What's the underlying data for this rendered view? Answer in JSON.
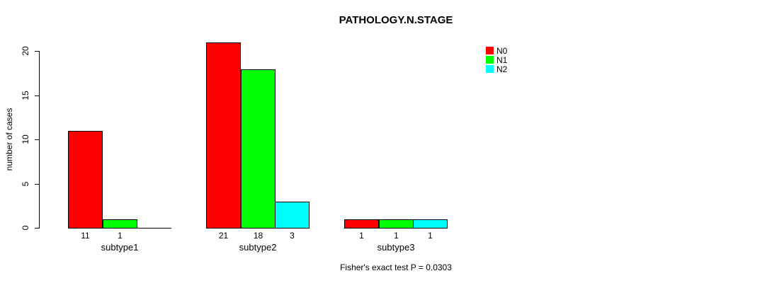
{
  "chart_data": {
    "type": "bar",
    "title": "PATHOLOGY.N.STAGE",
    "ylabel": "number of cases",
    "xlabel": "",
    "categories": [
      "subtype1",
      "subtype2",
      "subtype3"
    ],
    "series": [
      {
        "name": "N0",
        "color": "#FF0000",
        "values": [
          11,
          21,
          1
        ]
      },
      {
        "name": "N1",
        "color": "#00FF00",
        "values": [
          1,
          18,
          1
        ]
      },
      {
        "name": "N2",
        "color": "#00FFFF",
        "values": [
          0,
          3,
          1
        ]
      }
    ],
    "value_labels_shown": true,
    "yticks": [
      0,
      5,
      10,
      15,
      20
    ],
    "ylim": [
      0,
      21
    ],
    "grid": false,
    "legend_position": "top-right",
    "legend_entries": [
      "N0",
      "N1",
      "N2"
    ],
    "annotation": "Fisher's exact test P = 0.0303"
  },
  "colors": {
    "background": "#FFFFFF",
    "axis": "#000000",
    "text": "#000000"
  }
}
